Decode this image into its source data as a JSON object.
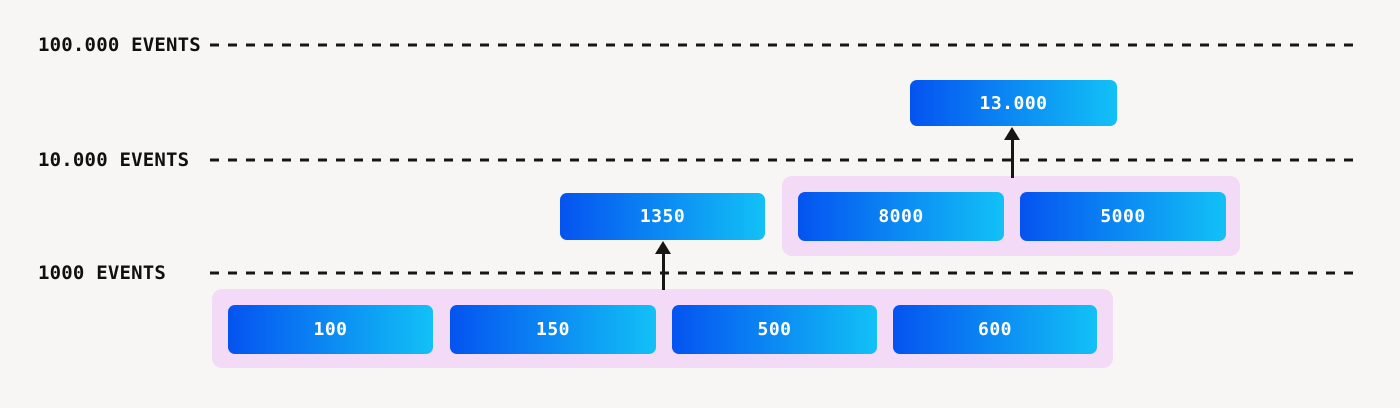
{
  "diagram": {
    "title_hint": "event-aggregation-levels",
    "levels": [
      {
        "id": "100k",
        "label": "100.000 EVENTS"
      },
      {
        "id": "10k",
        "label": "10.000 EVENTS"
      },
      {
        "id": "1k",
        "label": "1000 EVENTS"
      }
    ],
    "boxes": {
      "b13000": {
        "label": "13.000"
      },
      "b1350": {
        "label": "1350"
      },
      "b8000": {
        "label": "8000"
      },
      "b5000": {
        "label": "5000"
      },
      "b100": {
        "label": "100"
      },
      "b150": {
        "label": "150"
      },
      "b500": {
        "label": "500"
      },
      "b600": {
        "label": "600"
      }
    },
    "groups": [
      {
        "id": "group-mid",
        "members": [
          "8000",
          "5000"
        ],
        "aggregates_to": "13.000"
      },
      {
        "id": "group-bottom",
        "members": [
          "100",
          "150",
          "500",
          "600"
        ],
        "aggregates_to": "1350"
      }
    ],
    "colors": {
      "background": "#f7f6f4",
      "line_color": "#161616",
      "label_color": "#101010",
      "box_text": "#ffffff",
      "box_gradient_start": "#0553f0",
      "box_gradient_end": "#12c1f6",
      "group_bg": "#f3daf7"
    }
  }
}
